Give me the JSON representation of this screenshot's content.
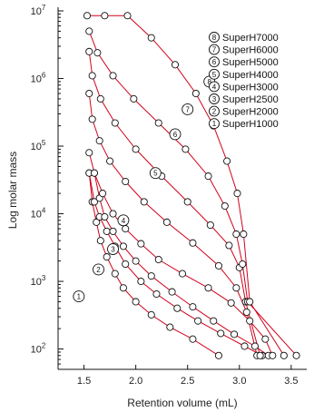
{
  "colors": {
    "line": "#d0021b",
    "marker_fill": "#ffffff",
    "marker_stroke": "#111111",
    "axis": "#111111"
  },
  "chart_data": {
    "type": "line",
    "xlabel": "Retention volume (mL)",
    "ylabel": "Log molar mass",
    "xlim": [
      1.25,
      3.65
    ],
    "ylim": [
      50,
      10000000
    ],
    "yscale": "log",
    "xticks": [
      "1.5",
      "2.0",
      "2.5",
      "3.0",
      "3.5"
    ],
    "yticks": [
      {
        "base": "10",
        "exp": "2"
      },
      {
        "base": "10",
        "exp": "3"
      },
      {
        "base": "10",
        "exp": "4"
      },
      {
        "base": "10",
        "exp": "5"
      },
      {
        "base": "10",
        "exp": "6"
      },
      {
        "base": "10",
        "exp": "7"
      }
    ],
    "grid": false,
    "legend_position": "top-right",
    "series": [
      {
        "name": "SuperH1000",
        "marker": "1",
        "x": [
          1.55,
          1.58,
          1.62,
          1.66,
          1.72,
          1.8,
          1.88,
          2.0,
          2.15,
          2.33,
          2.55,
          2.8
        ],
        "y": [
          40000,
          15000,
          7500,
          4000,
          2300,
          1300,
          800,
          500,
          320,
          210,
          140,
          80
        ]
      },
      {
        "name": "SuperH2000",
        "marker": "2",
        "x": [
          1.55,
          1.6,
          1.65,
          1.72,
          1.8,
          1.9,
          2.05,
          2.2,
          2.4,
          2.6,
          2.82,
          3.05,
          3.22
        ],
        "y": [
          40000,
          15000,
          9000,
          5500,
          3300,
          1800,
          1000,
          650,
          400,
          260,
          170,
          110,
          80
        ]
      },
      {
        "name": "SuperH2500",
        "marker": "3",
        "x": [
          1.6,
          1.65,
          1.7,
          1.78,
          1.88,
          2.0,
          2.15,
          2.35,
          2.55,
          2.75,
          2.95,
          3.15,
          3.28
        ],
        "y": [
          40000,
          17000,
          9000,
          5500,
          3300,
          2000,
          1200,
          700,
          420,
          260,
          165,
          110,
          80
        ]
      },
      {
        "name": "SuperH3000",
        "marker": "4",
        "x": [
          1.55,
          1.6,
          1.68,
          1.78,
          1.9,
          2.05,
          2.22,
          2.45,
          2.7,
          2.92,
          3.1,
          3.25,
          3.32
        ],
        "y": [
          80000,
          40000,
          20000,
          10000,
          6000,
          3600,
          2100,
          1300,
          800,
          480,
          260,
          140,
          80
        ]
      },
      {
        "name": "SuperH4000",
        "marker": "5",
        "x": [
          1.55,
          1.58,
          1.65,
          1.75,
          1.9,
          2.08,
          2.3,
          2.55,
          2.8,
          2.97,
          3.07,
          3.17
        ],
        "y": [
          600000,
          250000,
          120000,
          60000,
          30000,
          15000,
          7500,
          3700,
          1700,
          800,
          350,
          80
        ]
      },
      {
        "name": "SuperH5000",
        "marker": "6",
        "x": [
          1.55,
          1.58,
          1.66,
          1.8,
          2.0,
          2.25,
          2.5,
          2.72,
          2.9,
          3.0,
          3.06,
          3.2
        ],
        "y": [
          2500000,
          1100000,
          500000,
          220000,
          90000,
          36000,
          15000,
          6800,
          3400,
          1600,
          500,
          80
        ]
      },
      {
        "name": "SuperH6000",
        "marker": "7",
        "x": [
          1.55,
          1.63,
          1.78,
          1.98,
          2.22,
          2.48,
          2.7,
          2.86,
          2.97,
          3.03,
          3.08,
          3.55
        ],
        "y": [
          5000000,
          2400000,
          1100000,
          500000,
          220000,
          90000,
          36000,
          13000,
          5000,
          1800,
          500,
          80
        ]
      },
      {
        "name": "SuperH7000",
        "marker": "8",
        "x": [
          1.53,
          1.7,
          1.92,
          2.15,
          2.38,
          2.58,
          2.75,
          2.88,
          2.98,
          3.04,
          3.1,
          3.43
        ],
        "y": [
          8500000,
          8500000,
          8500000,
          4000000,
          1600000,
          600000,
          200000,
          60000,
          20000,
          5000,
          500,
          80
        ]
      }
    ],
    "legend_order": [
      7,
      6,
      5,
      4,
      3,
      2,
      1,
      0
    ],
    "curve_labels": [
      {
        "series": 0,
        "text": "1",
        "x": 1.45,
        "y": 600
      },
      {
        "series": 1,
        "text": "2",
        "x": 1.64,
        "y": 1500
      },
      {
        "series": 2,
        "text": "3",
        "x": 1.78,
        "y": 3000
      },
      {
        "series": 3,
        "text": "4",
        "x": 1.88,
        "y": 8000
      },
      {
        "series": 4,
        "text": "5",
        "x": 2.19,
        "y": 40000
      },
      {
        "series": 5,
        "text": "6",
        "x": 2.38,
        "y": 150000
      },
      {
        "series": 6,
        "text": "7",
        "x": 2.5,
        "y": 350000
      },
      {
        "series": 7,
        "text": "8",
        "x": 2.71,
        "y": 900000
      }
    ]
  }
}
